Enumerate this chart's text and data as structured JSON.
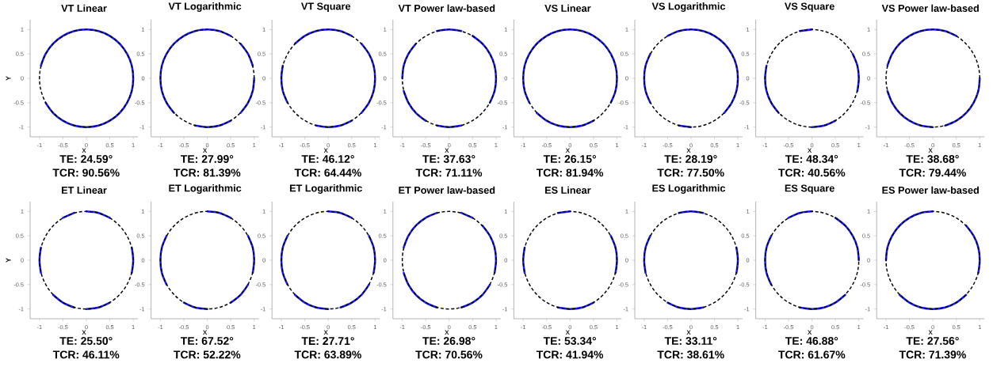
{
  "chart_data": [
    {
      "type": "line",
      "title": "VT Linear",
      "xlabel": "x",
      "ylabel": "Y",
      "xlim": [
        -1.2,
        1.1
      ],
      "ylim": [
        -1.2,
        1.2
      ],
      "xticks": [
        -1,
        -0.5,
        0,
        0.5,
        1
      ],
      "yticks": [
        -1,
        -0.5,
        0,
        0.5,
        1
      ],
      "annotations": [
        "TE: 24.59°",
        "TCR: 90.56%"
      ],
      "series": [
        {
          "color": "#1a1aff",
          "x": [
            -0.87,
            -0.71,
            -0.5,
            -0.26,
            0,
            0.26,
            0.5,
            0.71,
            0.87,
            0.97,
            1,
            0.97,
            0.87,
            0.71,
            0.5,
            0.26,
            0,
            -0.26,
            -0.5,
            -0.71,
            -0.87,
            -0.97
          ],
          "values": [
            -0.5,
            -0.71,
            -0.87,
            -0.97,
            -1,
            -0.97,
            -0.87,
            -0.71,
            -0.5,
            -0.26,
            0,
            0.26,
            0.5,
            0.71,
            0.87,
            0.97,
            1,
            0.97,
            0.87,
            0.71,
            0.5,
            0.26
          ]
        }
      ]
    },
    {
      "type": "line",
      "title": "VT Logarithmic",
      "xlabel": "x",
      "xlim": [
        -1.2,
        1.1
      ],
      "ylim": [
        -1.2,
        1.2
      ],
      "xticks": [
        -1,
        -0.5,
        0,
        0.5,
        1
      ],
      "yticks": [
        -1,
        -0.5,
        0,
        0.5,
        1
      ],
      "annotations": [
        "TE: 27.99°",
        "TCR: 81.39%"
      ],
      "series": [
        {
          "color": "#1a1aff",
          "x": [
            0.97,
            0.87,
            0.71,
            null,
            0.5,
            0.26,
            0,
            -0.26,
            -0.5,
            -0.71,
            -0.87,
            -0.97,
            -1,
            -0.97,
            -0.87,
            -0.71,
            null,
            -0.26,
            0,
            0.26,
            0.5,
            null,
            0.71,
            0.87,
            0.97,
            1
          ],
          "values": [
            0.26,
            0.5,
            0.71,
            null,
            0.87,
            0.97,
            1,
            0.97,
            0.87,
            0.71,
            0.5,
            0.26,
            0,
            -0.26,
            -0.5,
            -0.71,
            null,
            -0.97,
            -1,
            -0.97,
            -0.87,
            null,
            -0.71,
            -0.5,
            -0.26,
            0
          ]
        }
      ]
    },
    {
      "type": "line",
      "title": "VT Square",
      "xlabel": "x",
      "xlim": [
        -1.2,
        1.1
      ],
      "ylim": [
        -1.2,
        1.2
      ],
      "xticks": [
        -1,
        -0.5,
        0,
        0.5,
        1
      ],
      "yticks": [
        -1,
        -0.5,
        0,
        0.5,
        1
      ],
      "annotations": [
        "TE: 46.12°",
        "TCR: 64.44%"
      ],
      "series": [
        {
          "color": "#1a1aff",
          "x": [
            0.5,
            0.26,
            0,
            -0.26,
            -0.5,
            -0.71,
            null,
            -0.97,
            -1,
            -0.97,
            -0.87,
            null,
            -0.26,
            0,
            0.26,
            0.5,
            null,
            0.71,
            0.87,
            0.97,
            1,
            0.97,
            0.87,
            0.71
          ],
          "values": [
            0.87,
            0.97,
            1,
            0.97,
            0.87,
            0.71,
            null,
            0.26,
            0,
            -0.26,
            -0.5,
            null,
            -0.97,
            -1,
            -0.97,
            -0.87,
            null,
            -0.71,
            -0.5,
            -0.26,
            0,
            0.26,
            0.5,
            0.71
          ]
        }
      ]
    },
    {
      "type": "line",
      "title": "VT Power law-based",
      "xlabel": "x",
      "xlim": [
        -1.2,
        1.1
      ],
      "ylim": [
        -1.2,
        1.2
      ],
      "xticks": [
        -1,
        -0.5,
        0,
        0.5,
        1
      ],
      "yticks": [
        -1,
        -0.5,
        0,
        0.5,
        1
      ],
      "annotations": [
        "TE: 37.63°",
        "TCR: 71.11%"
      ],
      "series": [
        {
          "color": "#1a1aff",
          "x": [
            0.26,
            0,
            -0.26,
            null,
            -0.71,
            -0.87,
            -0.97,
            -1,
            null,
            -0.97,
            -0.87,
            -0.71,
            -0.5,
            null,
            -0.26,
            0,
            0.26,
            null,
            0.87,
            0.97,
            1,
            0.97,
            0.87,
            0.71,
            0.5
          ],
          "values": [
            0.97,
            1,
            0.97,
            null,
            0.71,
            0.5,
            0.26,
            0,
            null,
            -0.26,
            -0.5,
            -0.71,
            -0.87,
            null,
            -0.97,
            -1,
            -0.97,
            null,
            -0.5,
            -0.26,
            0,
            0.26,
            0.5,
            0.71,
            0.87
          ]
        }
      ]
    },
    {
      "type": "line",
      "title": "VS Linear",
      "xlabel": "x",
      "xlim": [
        -1.2,
        1.1
      ],
      "ylim": [
        -1.2,
        1.2
      ],
      "xticks": [
        -1,
        -0.5,
        0,
        0.5,
        1
      ],
      "yticks": [
        -1,
        -0.5,
        0,
        0.5,
        1
      ],
      "annotations": [
        "TE: 26.15°",
        "TCR: 81.94%"
      ],
      "series": [
        {
          "color": "#1a1aff",
          "x": [
            -0.71,
            -0.5,
            -0.26,
            0,
            0.26,
            0.5,
            null,
            0.87,
            0.97,
            1,
            0.97,
            0.87,
            0.71,
            0.5,
            0.26,
            0,
            -0.26,
            -0.5,
            -0.71,
            -0.87,
            -0.97,
            -1,
            -0.97,
            -0.87
          ],
          "values": [
            -0.71,
            -0.87,
            -0.97,
            -1,
            -0.97,
            -0.87,
            null,
            -0.5,
            -0.26,
            0,
            0.26,
            0.5,
            0.71,
            0.87,
            0.97,
            1,
            0.97,
            0.87,
            0.71,
            0.5,
            0.26,
            0,
            -0.26,
            -0.5
          ]
        }
      ]
    },
    {
      "type": "line",
      "title": "VS Logarithmic",
      "xlabel": "x",
      "xlim": [
        -1.2,
        1.1
      ],
      "ylim": [
        -1.2,
        1.2
      ],
      "xticks": [
        -1,
        -0.5,
        0,
        0.5,
        1
      ],
      "yticks": [
        -1,
        -0.5,
        0,
        0.5,
        1
      ],
      "annotations": [
        "TE: 28.19°",
        "TCR: 77.50%"
      ],
      "series": [
        {
          "color": "#1a1aff",
          "x": [
            -0.87,
            -0.97,
            -1,
            -0.97,
            -0.87,
            null,
            -0.26,
            0,
            null,
            0.71,
            0.87,
            0.97,
            1,
            0.97,
            0.87,
            0.71,
            0.5,
            0.26,
            0,
            -0.26,
            -0.5
          ],
          "values": [
            0.5,
            0.26,
            0,
            -0.26,
            -0.5,
            null,
            -0.97,
            -1,
            null,
            -0.71,
            -0.5,
            -0.26,
            0,
            0.26,
            0.5,
            0.71,
            0.87,
            0.97,
            1,
            0.97,
            0.87
          ]
        }
      ]
    },
    {
      "type": "line",
      "title": "VS Square",
      "xlabel": "x",
      "xlim": [
        -1.2,
        1.1
      ],
      "ylim": [
        -1.2,
        1.2
      ],
      "xticks": [
        -1,
        -0.5,
        0,
        0.5,
        1
      ],
      "yticks": [
        -1,
        -0.5,
        0,
        0.5,
        1
      ],
      "annotations": [
        "TE: 48.34°",
        "TCR: 40.56%"
      ],
      "series": [
        {
          "color": "#1a1aff",
          "x": [
            0,
            -0.26,
            null,
            -0.97,
            -1,
            -0.97,
            -0.87,
            -0.71,
            null,
            0,
            0.26,
            0.5,
            null,
            0.97,
            1,
            0.97,
            0.87
          ],
          "values": [
            1,
            0.97,
            null,
            0.26,
            0,
            -0.26,
            -0.5,
            -0.71,
            null,
            -1,
            -0.97,
            -0.87,
            null,
            -0.26,
            0,
            0.26,
            0.5
          ]
        }
      ]
    },
    {
      "type": "line",
      "title": "VS Power law-based",
      "xlabel": "x",
      "xlim": [
        -1.2,
        1.1
      ],
      "ylim": [
        -1.2,
        1.2
      ],
      "xticks": [
        -1,
        -0.5,
        0,
        0.5,
        1
      ],
      "yticks": [
        -1,
        -0.5,
        0,
        0.5,
        1
      ],
      "annotations": [
        "TE: 38.68°",
        "TCR: 79.44%"
      ],
      "series": [
        {
          "color": "#1a1aff",
          "x": [
            0.5,
            0.26,
            0,
            -0.26,
            -0.5,
            -0.71,
            -0.87,
            -0.97,
            null,
            -0.97,
            -0.87,
            -0.71,
            -0.5,
            -0.26,
            0,
            null,
            0.26,
            0.5,
            0.71,
            0.87,
            0.97,
            1
          ],
          "values": [
            0.87,
            0.97,
            1,
            0.97,
            0.87,
            0.71,
            0.5,
            0.26,
            null,
            -0.26,
            -0.5,
            -0.71,
            -0.87,
            -0.97,
            -1,
            null,
            -0.97,
            -0.87,
            -0.71,
            -0.5,
            -0.26,
            0
          ]
        }
      ]
    },
    {
      "type": "line",
      "title": "ET Linear",
      "xlabel": "x",
      "ylabel": "Y",
      "xlim": [
        -1.2,
        1.1
      ],
      "ylim": [
        -1.2,
        1.2
      ],
      "xticks": [
        -1,
        -0.5,
        0,
        0.5,
        1
      ],
      "yticks": [
        -1,
        -0.5,
        0,
        0.5,
        1
      ],
      "annotations": [
        "TE: 25.50°",
        "TCR: 46.11%"
      ],
      "series": [
        {
          "color": "#1a1aff",
          "x": [
            0.5,
            0.26,
            0,
            null,
            -0.26,
            -0.5,
            null,
            -0.97,
            -1,
            -0.97,
            null,
            -0.71,
            -0.5,
            -0.26,
            null,
            0,
            0.26,
            0.5,
            null,
            0.97,
            1,
            0.97
          ],
          "values": [
            0.87,
            0.97,
            1,
            null,
            0.97,
            0.87,
            null,
            0.26,
            0,
            -0.26,
            null,
            -0.71,
            -0.87,
            -0.97,
            null,
            -1,
            -0.97,
            -0.87,
            null,
            -0.26,
            0,
            0.26
          ]
        }
      ]
    },
    {
      "type": "line",
      "title": "ET Logarithmic",
      "xlabel": "x",
      "xlim": [
        -1.2,
        1.1
      ],
      "ylim": [
        -1.2,
        1.2
      ],
      "xticks": [
        -1,
        -0.5,
        0,
        0.5,
        1
      ],
      "yticks": [
        -1,
        -0.5,
        0,
        0.5,
        1
      ],
      "annotations": [
        "TE: 67.52°",
        "TCR: 52.22%"
      ],
      "series": [
        {
          "color": "#1a1aff",
          "x": [
            0.5,
            0.26,
            0,
            null,
            -0.87,
            -0.97,
            -1,
            -0.97,
            -0.87,
            null,
            -0.5,
            -0.26,
            0,
            null,
            0.5,
            0.71,
            0.87,
            null,
            0.97,
            1,
            0.97,
            0.87
          ],
          "values": [
            0.87,
            0.97,
            1,
            null,
            0.5,
            0.26,
            0,
            -0.26,
            -0.5,
            null,
            -0.87,
            -0.97,
            -1,
            null,
            -0.87,
            -0.71,
            -0.5,
            null,
            -0.26,
            0,
            0.26,
            0.5
          ]
        }
      ]
    },
    {
      "type": "line",
      "title": "ET Logarithmic",
      "xlabel": "x",
      "xlim": [
        -1.2,
        1.1
      ],
      "ylim": [
        -1.2,
        1.2
      ],
      "xticks": [
        -1,
        -0.5,
        0,
        0.5,
        1
      ],
      "yticks": [
        -1,
        -0.5,
        0,
        0.5,
        1
      ],
      "annotations": [
        "TE: 27.71°",
        "TCR: 63.89%"
      ],
      "series": [
        {
          "color": "#1a1aff",
          "x": [
            0.5,
            0.26,
            0,
            null,
            -0.87,
            -0.97,
            -1,
            -0.97,
            -0.87,
            null,
            -0.71,
            -0.5,
            -0.26,
            0,
            null,
            0.26,
            0.5,
            0.71,
            0.87,
            null,
            0.97,
            1,
            0.97,
            0.87
          ],
          "values": [
            0.87,
            0.97,
            1,
            null,
            0.5,
            0.26,
            0,
            -0.26,
            -0.5,
            null,
            -0.71,
            -0.87,
            -0.97,
            -1,
            null,
            -0.97,
            -0.87,
            -0.71,
            -0.5,
            null,
            -0.26,
            0,
            0.26,
            0.5
          ]
        }
      ]
    },
    {
      "type": "line",
      "title": "ET Power law-based",
      "xlabel": "x",
      "xlim": [
        -1.2,
        1.1
      ],
      "ylim": [
        -1.2,
        1.2
      ],
      "xticks": [
        -1,
        -0.5,
        0,
        0.5,
        1
      ],
      "yticks": [
        -1,
        -0.5,
        0,
        0.5,
        1
      ],
      "annotations": [
        "TE: 26.98°",
        "TCR: 70.56%"
      ],
      "series": [
        {
          "color": "#1a1aff",
          "x": [
            0.5,
            0.26,
            null,
            -0.26,
            -0.5,
            -0.71,
            -0.87,
            -0.97,
            null,
            -0.97,
            -0.87,
            -0.71,
            -0.5,
            -0.26,
            null,
            0.26,
            0.5,
            0.71,
            0.87,
            null,
            0.97,
            1,
            0.97,
            0.87,
            0.71
          ],
          "values": [
            0.87,
            0.97,
            null,
            0.97,
            0.87,
            0.71,
            0.5,
            0.26,
            null,
            -0.26,
            -0.5,
            -0.71,
            -0.87,
            -0.97,
            null,
            -0.97,
            -0.87,
            -0.71,
            -0.5,
            null,
            -0.26,
            0,
            0.26,
            0.5,
            0.71
          ]
        }
      ]
    },
    {
      "type": "line",
      "title": "ES Linear",
      "xlabel": "x",
      "xlim": [
        -1.2,
        1.1
      ],
      "ylim": [
        -1.2,
        1.2
      ],
      "xticks": [
        -1,
        -0.5,
        0,
        0.5,
        1
      ],
      "yticks": [
        -1,
        -0.5,
        0,
        0.5,
        1
      ],
      "annotations": [
        "TE: 53.34°",
        "TCR: 41.94%"
      ],
      "series": [
        {
          "color": "#1a1aff",
          "x": [
            0,
            -0.26,
            null,
            -0.97,
            -1,
            -0.97,
            null,
            -0.26,
            0,
            0.26,
            0.5,
            null,
            0.97,
            1,
            0.97,
            0.87
          ],
          "values": [
            1,
            0.97,
            null,
            0.26,
            0,
            -0.26,
            null,
            -0.97,
            -1,
            -0.97,
            -0.87,
            null,
            -0.26,
            0,
            0.26,
            0.5
          ]
        }
      ]
    },
    {
      "type": "line",
      "title": "ES Logarithmic",
      "xlabel": "x",
      "xlim": [
        -1.2,
        1.1
      ],
      "ylim": [
        -1.2,
        1.2
      ],
      "xticks": [
        -1,
        -0.5,
        0,
        0.5,
        1
      ],
      "yticks": [
        -1,
        -0.5,
        0,
        0.5,
        1
      ],
      "annotations": [
        "TE: 33.11°",
        "TCR: 38.61%"
      ],
      "series": [
        {
          "color": "#1a1aff",
          "x": [
            0.26,
            0,
            -0.26,
            null,
            -0.87,
            -0.97,
            -1,
            -0.97,
            null,
            -0.5,
            -0.26,
            0,
            0.26,
            null,
            0.97,
            1,
            0.97
          ],
          "values": [
            0.97,
            1,
            0.97,
            null,
            0.5,
            0.26,
            0,
            -0.26,
            null,
            -0.87,
            -0.97,
            -1,
            -0.97,
            null,
            -0.26,
            0,
            0.26
          ]
        }
      ]
    },
    {
      "type": "line",
      "title": "ES Square",
      "xlabel": "x",
      "xlim": [
        -1.2,
        1.1
      ],
      "ylim": [
        -1.2,
        1.2
      ],
      "xticks": [
        -1,
        -0.5,
        0,
        0.5,
        1
      ],
      "yticks": [
        -1,
        -0.5,
        0,
        0.5,
        1
      ],
      "annotations": [
        "TE: 46.88°",
        "TCR: 61.67%"
      ],
      "series": [
        {
          "color": "#1a1aff",
          "x": [
            1,
            0.97,
            0.87,
            0.71,
            0.5,
            null,
            0,
            -0.26,
            -0.5,
            null,
            -0.87,
            -0.97,
            -1,
            -0.97,
            -0.87,
            null,
            -0.26,
            0,
            0.26,
            0.5,
            0.71
          ],
          "values": [
            0,
            0.26,
            0.5,
            0.71,
            0.87,
            null,
            1,
            0.97,
            0.87,
            null,
            0.5,
            0.26,
            0,
            -0.26,
            -0.5,
            null,
            -0.97,
            -1,
            -0.97,
            -0.87,
            -0.71
          ]
        }
      ]
    },
    {
      "type": "line",
      "title": "ES Power law-based",
      "xlabel": "x",
      "xlim": [
        -1.2,
        1.1
      ],
      "ylim": [
        -1.2,
        1.2
      ],
      "xticks": [
        -1,
        -0.5,
        0,
        0.5,
        1
      ],
      "yticks": [
        -1,
        -0.5,
        0,
        0.5,
        1
      ],
      "annotations": [
        "TE: 27.56°",
        "TCR: 71.39%"
      ],
      "series": [
        {
          "color": "#1a1aff",
          "x": [
            0,
            -0.26,
            -0.5,
            -0.71,
            -0.87,
            -0.97,
            -1,
            null,
            -0.71,
            -0.5,
            -0.26,
            0,
            0.26,
            0.5,
            0.71,
            null,
            0.97,
            1,
            0.97,
            0.87,
            0.71
          ],
          "values": [
            1,
            0.97,
            0.87,
            0.71,
            0.5,
            0.26,
            0,
            null,
            -0.71,
            -0.87,
            -0.97,
            -1,
            -0.97,
            -0.87,
            -0.71,
            null,
            -0.26,
            0,
            0.26,
            0.5,
            0.71
          ]
        }
      ]
    }
  ]
}
